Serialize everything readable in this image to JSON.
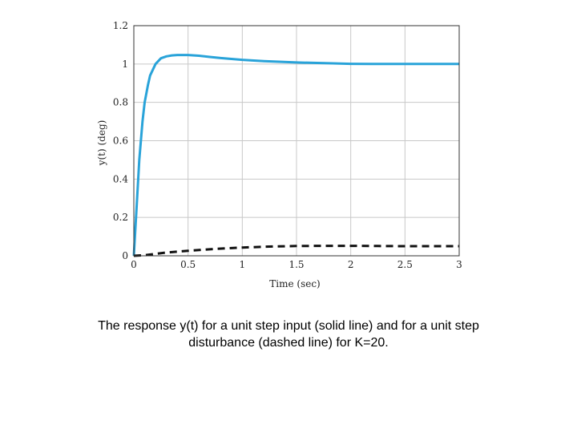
{
  "caption": {
    "line1": "The response y(t) for a unit step input (solid line) and for a unit step",
    "line2": "disturbance (dashed line) for K=20."
  },
  "chart_data": {
    "type": "line",
    "title": "",
    "xlabel": "Time (sec)",
    "ylabel": "y(t) (deg)",
    "xlim": [
      0,
      3
    ],
    "ylim": [
      0,
      1.2
    ],
    "xticks": [
      "0",
      "0.5",
      "1",
      "1.5",
      "2",
      "2.5",
      "3"
    ],
    "yticks": [
      "0",
      "0.2",
      "0.4",
      "0.6",
      "0.8",
      "1",
      "1.2"
    ],
    "grid": true,
    "legend": "none",
    "series": [
      {
        "style": "solid",
        "color": "#29a3d9",
        "x": [
          0,
          0.03,
          0.05,
          0.08,
          0.1,
          0.13,
          0.15,
          0.2,
          0.25,
          0.3,
          0.35,
          0.4,
          0.5,
          0.6,
          0.7,
          0.8,
          1.0,
          1.2,
          1.5,
          1.8,
          2.0,
          2.2,
          2.5,
          3.0
        ],
        "y": [
          0,
          0.3,
          0.5,
          0.7,
          0.8,
          0.89,
          0.94,
          1.0,
          1.03,
          1.04,
          1.045,
          1.047,
          1.047,
          1.043,
          1.037,
          1.031,
          1.022,
          1.015,
          1.008,
          1.004,
          1.001,
          1.0,
          1.0,
          1.0
        ]
      },
      {
        "style": "dashed",
        "color": "#111111",
        "x": [
          0,
          0.1,
          0.2,
          0.3,
          0.5,
          0.75,
          1.0,
          1.25,
          1.5,
          1.75,
          2.0,
          2.25,
          2.5,
          2.75,
          3.0
        ],
        "y": [
          0,
          0.003,
          0.01,
          0.017,
          0.026,
          0.036,
          0.043,
          0.048,
          0.051,
          0.052,
          0.052,
          0.051,
          0.05,
          0.05,
          0.05
        ]
      }
    ]
  }
}
